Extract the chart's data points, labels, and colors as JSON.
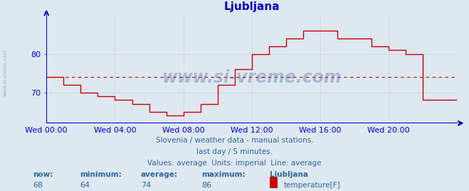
{
  "title": "Ljubljana",
  "bg_color": "#dde8f0",
  "plot_bg_color": "#dde8f0",
  "line_color": "#cc0000",
  "avg_line_color": "#cc0000",
  "axis_color": "#0000cc",
  "grid_color": "#cc8888",
  "text_color": "#336699",
  "watermark": "www.si-vreme.com",
  "subtitle1": "Slovenia / weather data - manual stations.",
  "subtitle2": "last day / 5 minutes.",
  "subtitle3": "Values: average  Units: imperial  Line: average",
  "footer_labels": [
    "now:",
    "minimum:",
    "average:",
    "maximum:",
    "Ljubljana"
  ],
  "footer_values": [
    "68",
    "64",
    "74",
    "86"
  ],
  "footer_series": "temperature[F]",
  "ylim": [
    62,
    90
  ],
  "yticks": [
    70,
    80
  ],
  "average_value": 74,
  "x_tick_labels": [
    "Wed 00:00",
    "Wed 04:00",
    "Wed 08:00",
    "Wed 12:00",
    "Wed 16:00",
    "Wed 20:00"
  ],
  "x_tick_positions": [
    0,
    48,
    96,
    144,
    192,
    240
  ],
  "total_points": 288,
  "temperatures": [
    74,
    74,
    74,
    74,
    74,
    74,
    74,
    74,
    74,
    74,
    74,
    74,
    72,
    72,
    72,
    72,
    72,
    72,
    72,
    72,
    72,
    72,
    72,
    72,
    70,
    70,
    70,
    70,
    70,
    70,
    70,
    70,
    70,
    70,
    70,
    70,
    69,
    69,
    69,
    69,
    69,
    69,
    69,
    69,
    69,
    69,
    69,
    69,
    68,
    68,
    68,
    68,
    68,
    68,
    68,
    68,
    68,
    68,
    68,
    68,
    67,
    67,
    67,
    67,
    67,
    67,
    67,
    67,
    67,
    67,
    67,
    67,
    65,
    65,
    65,
    65,
    65,
    65,
    65,
    65,
    65,
    65,
    65,
    65,
    64,
    64,
    64,
    64,
    64,
    64,
    64,
    64,
    64,
    64,
    64,
    64,
    65,
    65,
    65,
    65,
    65,
    65,
    65,
    65,
    65,
    65,
    65,
    65,
    67,
    67,
    67,
    67,
    67,
    67,
    67,
    67,
    67,
    67,
    67,
    67,
    72,
    72,
    72,
    72,
    72,
    72,
    72,
    72,
    72,
    72,
    72,
    72,
    76,
    76,
    76,
    76,
    76,
    76,
    76,
    76,
    76,
    76,
    76,
    76,
    80,
    80,
    80,
    80,
    80,
    80,
    80,
    80,
    80,
    80,
    80,
    80,
    82,
    82,
    82,
    82,
    82,
    82,
    82,
    82,
    82,
    82,
    82,
    82,
    84,
    84,
    84,
    84,
    84,
    84,
    84,
    84,
    84,
    84,
    84,
    84,
    86,
    86,
    86,
    86,
    86,
    86,
    86,
    86,
    86,
    86,
    86,
    86,
    86,
    86,
    86,
    86,
    86,
    86,
    86,
    86,
    86,
    86,
    86,
    86,
    84,
    84,
    84,
    84,
    84,
    84,
    84,
    84,
    84,
    84,
    84,
    84,
    84,
    84,
    84,
    84,
    84,
    84,
    84,
    84,
    84,
    84,
    84,
    84,
    82,
    82,
    82,
    82,
    82,
    82,
    82,
    82,
    82,
    82,
    82,
    82,
    81,
    81,
    81,
    81,
    81,
    81,
    81,
    81,
    81,
    81,
    81,
    81,
    80,
    80,
    80,
    80,
    80,
    80,
    80,
    80,
    80,
    80,
    80,
    80,
    68,
    68,
    68,
    68,
    68,
    68,
    68,
    68,
    68,
    68,
    68,
    68,
    68,
    68,
    68,
    68,
    68,
    68,
    68,
    68,
    68,
    68,
    68,
    68
  ]
}
